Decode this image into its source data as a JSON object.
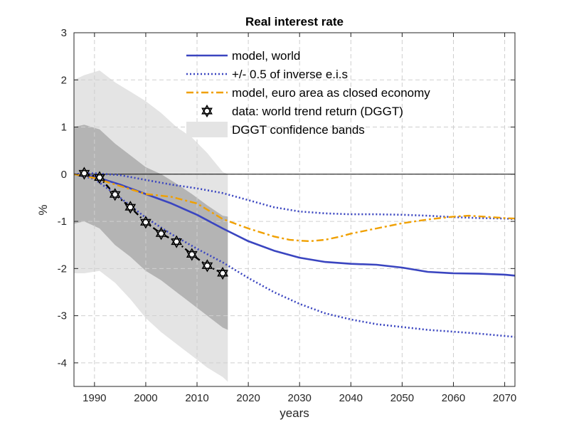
{
  "chart_data": {
    "type": "line",
    "title": "Real interest rate",
    "xlabel": "years",
    "ylabel": "%",
    "xlim": [
      1986,
      2072
    ],
    "ylim": [
      -4.5,
      3
    ],
    "x_ticks": [
      1990,
      2000,
      2010,
      2020,
      2030,
      2040,
      2050,
      2060,
      2070
    ],
    "y_ticks": [
      3,
      2,
      1,
      0,
      -1,
      -2,
      -3,
      -4
    ],
    "grid": true,
    "legend_position": "top-right",
    "colors": {
      "model_world": "#3a45c0",
      "eis_bounds": "#3a45c0",
      "euro_area": "#f0a000",
      "data": "#000000",
      "band_outer": "#e4e4e4",
      "band_inner": "#b4b4b4",
      "zero_line": "#000000"
    },
    "series": [
      {
        "name": "model, world",
        "style": "solid",
        "x": [
          1986,
          1990,
          1995,
          2000,
          2005,
          2010,
          2015,
          2020,
          2025,
          2030,
          2035,
          2040,
          2045,
          2050,
          2055,
          2060,
          2065,
          2070,
          2072
        ],
        "values": [
          0,
          -0.05,
          -0.22,
          -0.42,
          -0.62,
          -0.86,
          -1.15,
          -1.42,
          -1.62,
          -1.77,
          -1.86,
          -1.9,
          -1.92,
          -1.98,
          -2.07,
          -2.1,
          -2.11,
          -2.13,
          -2.15
        ]
      },
      {
        "name": "+/- 0.5 of inverse e.i.s (upper)",
        "legend_label": "+/- 0.5 of inverse e.i.s",
        "style": "dotted",
        "x": [
          1986,
          1990,
          1995,
          2000,
          2005,
          2010,
          2015,
          2020,
          2025,
          2030,
          2035,
          2040,
          2045,
          2050,
          2055,
          2060,
          2065,
          2070,
          2072
        ],
        "values": [
          0,
          0.02,
          -0.02,
          -0.12,
          -0.22,
          -0.3,
          -0.4,
          -0.55,
          -0.7,
          -0.79,
          -0.83,
          -0.85,
          -0.85,
          -0.86,
          -0.88,
          -0.91,
          -0.93,
          -0.94,
          -0.95
        ]
      },
      {
        "name": "+/- 0.5 of inverse e.i.s (lower)",
        "style": "dotted",
        "x": [
          1986,
          1990,
          1995,
          2000,
          2005,
          2010,
          2015,
          2020,
          2025,
          2030,
          2035,
          2040,
          2045,
          2050,
          2055,
          2060,
          2065,
          2070,
          2072
        ],
        "values": [
          0,
          -0.1,
          -0.5,
          -0.92,
          -1.27,
          -1.58,
          -1.87,
          -2.2,
          -2.5,
          -2.75,
          -2.95,
          -3.08,
          -3.18,
          -3.24,
          -3.3,
          -3.34,
          -3.38,
          -3.43,
          -3.45
        ]
      },
      {
        "name": "model, euro area as closed economy",
        "style": "dashdot",
        "x": [
          1986,
          1990,
          1995,
          2000,
          2005,
          2010,
          2015,
          2020,
          2025,
          2028,
          2030,
          2032,
          2035,
          2038,
          2040,
          2045,
          2050,
          2055,
          2060,
          2063,
          2066,
          2070,
          2072
        ],
        "values": [
          0,
          -0.08,
          -0.25,
          -0.42,
          -0.48,
          -0.62,
          -0.95,
          -1.15,
          -1.32,
          -1.39,
          -1.41,
          -1.42,
          -1.39,
          -1.32,
          -1.26,
          -1.15,
          -1.04,
          -0.96,
          -0.9,
          -0.88,
          -0.9,
          -0.93,
          -0.94
        ]
      }
    ],
    "data_points": {
      "name": "data: world trend return (DGGT)",
      "x": [
        1988,
        1991,
        1994,
        1997,
        2000,
        2003,
        2006,
        2009,
        2012,
        2015
      ],
      "values": [
        0.02,
        -0.07,
        -0.43,
        -0.7,
        -1.02,
        -1.26,
        -1.43,
        -1.7,
        -1.94,
        -2.1
      ]
    },
    "confidence_bands": {
      "name": "DGGT confidence bands",
      "x": [
        1986,
        1988,
        1991,
        1994,
        1997,
        2000,
        2003,
        2006,
        2009,
        2012,
        2015,
        2016
      ],
      "outer_upper": [
        2.0,
        2.1,
        2.2,
        1.95,
        1.75,
        1.55,
        1.3,
        1.0,
        0.78,
        0.45,
        0.05,
        0.0
      ],
      "outer_lower": [
        -2.1,
        -2.1,
        -2.05,
        -2.3,
        -2.65,
        -3.05,
        -3.35,
        -3.6,
        -3.85,
        -4.1,
        -4.3,
        -4.4
      ],
      "inner_upper": [
        1.0,
        1.05,
        0.95,
        0.65,
        0.4,
        0.15,
        0.0,
        -0.2,
        -0.42,
        -0.66,
        -0.88,
        -0.9
      ],
      "inner_lower": [
        -1.05,
        -1.0,
        -1.15,
        -1.5,
        -1.75,
        -2.05,
        -2.25,
        -2.5,
        -2.75,
        -3.0,
        -3.25,
        -3.3
      ]
    },
    "legend": [
      "model, world",
      "+/- 0.5 of inverse e.i.s",
      "model, euro area as closed economy",
      "data: world trend return (DGGT)",
      "DGGT confidence bands"
    ]
  }
}
